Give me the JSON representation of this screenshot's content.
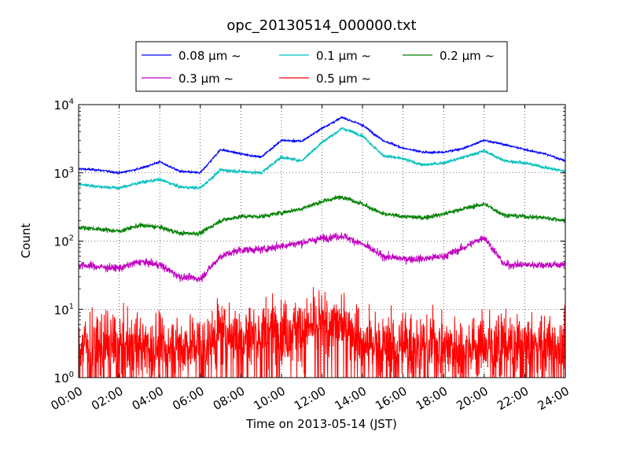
{
  "chart_data": {
    "type": "line",
    "title": "opc_20130514_000000.txt",
    "xlabel": "Time on 2013-05-14 (JST)",
    "ylabel": "Count",
    "yscale": "log",
    "grid": true,
    "legend_position": "top-center, outside plot",
    "x_ticks": [
      "00:00",
      "02:00",
      "04:00",
      "06:00",
      "08:00",
      "10:00",
      "12:00",
      "14:00",
      "16:00",
      "18:00",
      "20:00",
      "22:00",
      "24:00"
    ],
    "y_ticks": [
      {
        "base": "10",
        "exp": "0"
      },
      {
        "base": "10",
        "exp": "1"
      },
      {
        "base": "10",
        "exp": "2"
      },
      {
        "base": "10",
        "exp": "3"
      },
      {
        "base": "10",
        "exp": "4"
      }
    ],
    "xlim_hours": [
      0,
      24
    ],
    "ylim": [
      1,
      10000
    ],
    "x_hours": [
      0,
      1,
      2,
      3,
      4,
      5,
      6,
      7,
      8,
      9,
      10,
      11,
      12,
      13,
      14,
      15,
      16,
      17,
      18,
      19,
      20,
      21,
      22,
      23,
      24
    ],
    "series": [
      {
        "name": "0.08 µm ~",
        "color": "#0000ff",
        "noise": 0.06,
        "values": [
          1150,
          1100,
          1000,
          1150,
          1450,
          1050,
          1000,
          2200,
          1900,
          1700,
          3000,
          2900,
          4500,
          6500,
          5000,
          3000,
          2300,
          2000,
          2000,
          2300,
          3000,
          2600,
          2200,
          1900,
          1500
        ]
      },
      {
        "name": "0.1 µm ~",
        "color": "#00bfbf",
        "noise": 0.09,
        "values": [
          680,
          630,
          600,
          720,
          800,
          620,
          600,
          1100,
          1050,
          1000,
          1700,
          1500,
          2800,
          4500,
          3500,
          1800,
          1600,
          1300,
          1400,
          1700,
          2100,
          1500,
          1400,
          1200,
          1050
        ]
      },
      {
        "name": "0.2 µm ~",
        "color": "#008000",
        "noise": 0.13,
        "values": [
          160,
          150,
          140,
          170,
          160,
          130,
          130,
          200,
          230,
          230,
          260,
          300,
          380,
          450,
          350,
          250,
          230,
          220,
          250,
          300,
          350,
          240,
          230,
          220,
          200
        ]
      },
      {
        "name": "0.3 µm ~",
        "color": "#bf00bf",
        "noise": 0.22,
        "values": [
          45,
          42,
          40,
          50,
          45,
          30,
          28,
          60,
          75,
          75,
          85,
          95,
          110,
          120,
          90,
          60,
          55,
          55,
          60,
          80,
          115,
          45,
          45,
          45,
          45
        ]
      },
      {
        "name": "0.5 µm ~",
        "color": "#ff0000",
        "noise": 0.9,
        "values": [
          3,
          3,
          3,
          3,
          3,
          3,
          3,
          4.5,
          4.5,
          4.5,
          5,
          5,
          6,
          6,
          4,
          3,
          3,
          3,
          3,
          3,
          3,
          3,
          3,
          3,
          3
        ]
      }
    ]
  }
}
